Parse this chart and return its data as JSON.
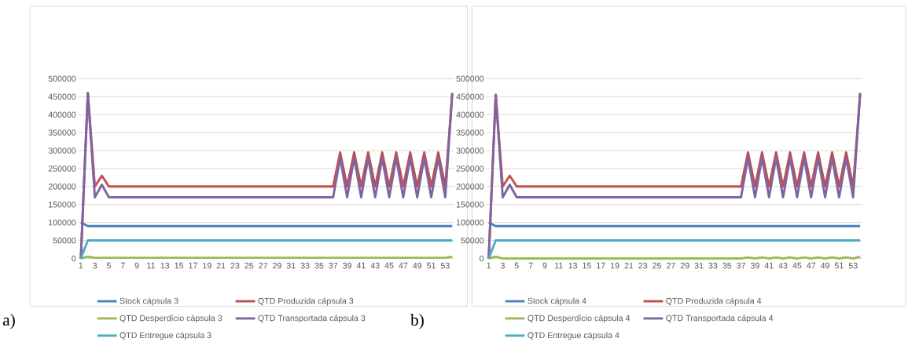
{
  "chart_data": [
    {
      "type": "line",
      "annotations": [
        "a)"
      ],
      "categories": [
        "1",
        null,
        "3",
        null,
        "5",
        null,
        "7",
        null,
        "9",
        null,
        "11",
        null,
        "13",
        null,
        "15",
        null,
        "17",
        null,
        "19",
        null,
        "21",
        null,
        "23",
        null,
        "25",
        null,
        "27",
        null,
        "29",
        null,
        "31",
        null,
        "33",
        null,
        "35",
        null,
        "37",
        null,
        "39",
        null,
        "41",
        null,
        "43",
        null,
        "45",
        null,
        "47",
        null,
        "49",
        null,
        "51",
        null,
        "53",
        null
      ],
      "ylim": [
        0,
        500000
      ],
      "yticks": [
        0,
        50000,
        100000,
        150000,
        200000,
        250000,
        300000,
        350000,
        400000,
        450000,
        500000
      ],
      "grid": "y",
      "legend": "bottom",
      "series": [
        {
          "name": "Stock cápsula 3",
          "color": "#4f81bd",
          "values": [
            100000,
            90000,
            90000,
            90000,
            90000,
            90000,
            90000,
            90000,
            90000,
            90000,
            90000,
            90000,
            90000,
            90000,
            90000,
            90000,
            90000,
            90000,
            90000,
            90000,
            90000,
            90000,
            90000,
            90000,
            90000,
            90000,
            90000,
            90000,
            90000,
            90000,
            90000,
            90000,
            90000,
            90000,
            90000,
            90000,
            90000,
            90000,
            90000,
            90000,
            90000,
            90000,
            90000,
            90000,
            90000,
            90000,
            90000,
            90000,
            90000,
            90000,
            90000,
            90000,
            90000,
            90000
          ]
        },
        {
          "name": "QTD Produzida cápsula 3",
          "color": "#c0504d",
          "values": [
            0,
            460000,
            200000,
            230000,
            200000,
            200000,
            200000,
            200000,
            200000,
            200000,
            200000,
            200000,
            200000,
            200000,
            200000,
            200000,
            200000,
            200000,
            200000,
            200000,
            200000,
            200000,
            200000,
            200000,
            200000,
            200000,
            200000,
            200000,
            200000,
            200000,
            200000,
            200000,
            200000,
            200000,
            200000,
            200000,
            200000,
            295000,
            200000,
            295000,
            200000,
            295000,
            200000,
            295000,
            200000,
            295000,
            200000,
            295000,
            200000,
            295000,
            200000,
            295000,
            200000,
            460000
          ]
        },
        {
          "name": "QTD Desperdício cápsula 3",
          "color": "#9bbb59",
          "values": [
            0,
            5000,
            2000,
            2000,
            2000,
            2000,
            2000,
            2000,
            2000,
            2000,
            2000,
            2000,
            2000,
            2000,
            2000,
            2000,
            2000,
            2000,
            2000,
            2000,
            2000,
            2000,
            2000,
            2000,
            2000,
            2000,
            2000,
            2000,
            2000,
            2000,
            2000,
            2000,
            2000,
            2000,
            2000,
            2000,
            2000,
            2000,
            2000,
            2000,
            2000,
            2000,
            2000,
            2000,
            2000,
            2000,
            2000,
            2000,
            2000,
            2000,
            2000,
            2000,
            2000,
            5000
          ]
        },
        {
          "name": "QTD Transportada cápsula 3",
          "color": "#8064a2",
          "values": [
            0,
            460000,
            170000,
            205000,
            170000,
            170000,
            170000,
            170000,
            170000,
            170000,
            170000,
            170000,
            170000,
            170000,
            170000,
            170000,
            170000,
            170000,
            170000,
            170000,
            170000,
            170000,
            170000,
            170000,
            170000,
            170000,
            170000,
            170000,
            170000,
            170000,
            170000,
            170000,
            170000,
            170000,
            170000,
            170000,
            170000,
            280000,
            170000,
            280000,
            170000,
            280000,
            170000,
            280000,
            170000,
            280000,
            170000,
            280000,
            170000,
            280000,
            170000,
            280000,
            170000,
            460000
          ]
        },
        {
          "name": "QTD Entregue cápsula 3",
          "color": "#4bacc6",
          "values": [
            0,
            50000,
            50000,
            50000,
            50000,
            50000,
            50000,
            50000,
            50000,
            50000,
            50000,
            50000,
            50000,
            50000,
            50000,
            50000,
            50000,
            50000,
            50000,
            50000,
            50000,
            50000,
            50000,
            50000,
            50000,
            50000,
            50000,
            50000,
            50000,
            50000,
            50000,
            50000,
            50000,
            50000,
            50000,
            50000,
            50000,
            50000,
            50000,
            50000,
            50000,
            50000,
            50000,
            50000,
            50000,
            50000,
            50000,
            50000,
            50000,
            50000,
            50000,
            50000,
            50000,
            50000
          ]
        }
      ]
    },
    {
      "type": "line",
      "annotations": [
        "b)"
      ],
      "categories": [
        "1",
        null,
        "3",
        null,
        "5",
        null,
        "7",
        null,
        "9",
        null,
        "11",
        null,
        "13",
        null,
        "15",
        null,
        "17",
        null,
        "19",
        null,
        "21",
        null,
        "23",
        null,
        "25",
        null,
        "27",
        null,
        "29",
        null,
        "31",
        null,
        "33",
        null,
        "35",
        null,
        "37",
        null,
        "39",
        null,
        "41",
        null,
        "43",
        null,
        "45",
        null,
        "47",
        null,
        "49",
        null,
        "51",
        null,
        "53",
        null
      ],
      "ylim": [
        0,
        500000
      ],
      "yticks": [
        0,
        50000,
        100000,
        150000,
        200000,
        250000,
        300000,
        350000,
        400000,
        450000,
        500000
      ],
      "grid": "y",
      "legend": "bottom",
      "series": [
        {
          "name": "Stock cápsula 4",
          "color": "#4f81bd",
          "values": [
            100000,
            90000,
            90000,
            90000,
            90000,
            90000,
            90000,
            90000,
            90000,
            90000,
            90000,
            90000,
            90000,
            90000,
            90000,
            90000,
            90000,
            90000,
            90000,
            90000,
            90000,
            90000,
            90000,
            90000,
            90000,
            90000,
            90000,
            90000,
            90000,
            90000,
            90000,
            90000,
            90000,
            90000,
            90000,
            90000,
            90000,
            90000,
            90000,
            90000,
            90000,
            90000,
            90000,
            90000,
            90000,
            90000,
            90000,
            90000,
            90000,
            90000,
            90000,
            90000,
            90000,
            90000
          ]
        },
        {
          "name": "QTD Produzida cápsula 4",
          "color": "#c0504d",
          "values": [
            0,
            455000,
            200000,
            230000,
            200000,
            200000,
            200000,
            200000,
            200000,
            200000,
            200000,
            200000,
            200000,
            200000,
            200000,
            200000,
            200000,
            200000,
            200000,
            200000,
            200000,
            200000,
            200000,
            200000,
            200000,
            200000,
            200000,
            200000,
            200000,
            200000,
            200000,
            200000,
            200000,
            200000,
            200000,
            200000,
            200000,
            295000,
            200000,
            295000,
            200000,
            295000,
            200000,
            295000,
            200000,
            295000,
            200000,
            295000,
            200000,
            295000,
            200000,
            295000,
            200000,
            460000
          ]
        },
        {
          "name": "QTD Desperdício cápsula 4",
          "color": "#9bbb59",
          "values": [
            0,
            5000,
            0,
            0,
            0,
            0,
            0,
            0,
            0,
            0,
            0,
            0,
            0,
            0,
            0,
            0,
            0,
            0,
            0,
            0,
            0,
            0,
            0,
            0,
            0,
            0,
            0,
            0,
            0,
            0,
            0,
            0,
            0,
            0,
            0,
            0,
            0,
            3000,
            0,
            3000,
            0,
            3000,
            0,
            3000,
            0,
            3000,
            0,
            3000,
            0,
            3000,
            0,
            3000,
            0,
            5000
          ]
        },
        {
          "name": "QTD Transportada cápsula 4",
          "color": "#8064a2",
          "values": [
            0,
            455000,
            170000,
            205000,
            170000,
            170000,
            170000,
            170000,
            170000,
            170000,
            170000,
            170000,
            170000,
            170000,
            170000,
            170000,
            170000,
            170000,
            170000,
            170000,
            170000,
            170000,
            170000,
            170000,
            170000,
            170000,
            170000,
            170000,
            170000,
            170000,
            170000,
            170000,
            170000,
            170000,
            170000,
            170000,
            170000,
            280000,
            170000,
            280000,
            170000,
            280000,
            170000,
            280000,
            170000,
            280000,
            170000,
            280000,
            170000,
            280000,
            170000,
            280000,
            170000,
            460000
          ]
        },
        {
          "name": "QTD Entregue cápsula 4",
          "color": "#4bacc6",
          "values": [
            0,
            50000,
            50000,
            50000,
            50000,
            50000,
            50000,
            50000,
            50000,
            50000,
            50000,
            50000,
            50000,
            50000,
            50000,
            50000,
            50000,
            50000,
            50000,
            50000,
            50000,
            50000,
            50000,
            50000,
            50000,
            50000,
            50000,
            50000,
            50000,
            50000,
            50000,
            50000,
            50000,
            50000,
            50000,
            50000,
            50000,
            50000,
            50000,
            50000,
            50000,
            50000,
            50000,
            50000,
            50000,
            50000,
            50000,
            50000,
            50000,
            50000,
            50000,
            50000,
            50000,
            50000
          ]
        }
      ]
    }
  ]
}
